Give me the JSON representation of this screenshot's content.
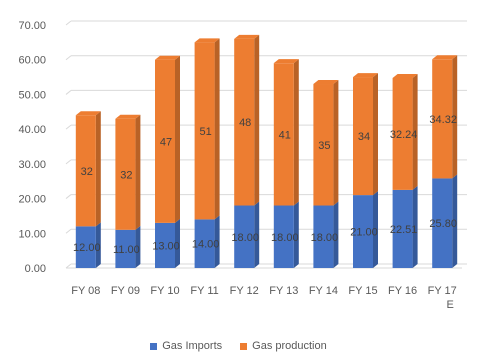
{
  "chart_data": {
    "type": "bar",
    "stacked": true,
    "three_d": true,
    "categories": [
      "FY 08",
      "FY 09",
      "FY 10",
      "FY 11",
      "FY 12",
      "FY 13",
      "FY 14",
      "FY 15",
      "FY 16",
      "FY 17 E"
    ],
    "category_lines": [
      [
        "FY 08"
      ],
      [
        "FY 09"
      ],
      [
        "FY 10"
      ],
      [
        "FY 11"
      ],
      [
        "FY 12"
      ],
      [
        "FY 13"
      ],
      [
        "FY 14"
      ],
      [
        "FY 15"
      ],
      [
        "FY 16"
      ],
      [
        "FY 17",
        "E"
      ]
    ],
    "series": [
      {
        "name": "Gas Imports",
        "color": "#4472C4",
        "values": [
          12.0,
          11.0,
          13.0,
          14.0,
          18.0,
          18.0,
          18.0,
          21.0,
          22.5,
          25.8
        ],
        "labels": [
          "12.00",
          "11.00",
          "13.00",
          "14.00",
          "18.00",
          "18.00",
          "18.00",
          "21.00",
          "22.51",
          "25.80"
        ]
      },
      {
        "name": "Gas production",
        "color": "#ED7D31",
        "values": [
          32,
          32,
          47,
          51,
          48,
          41,
          35,
          34,
          32.24,
          34.32
        ],
        "labels": [
          "32",
          "32",
          "47",
          "51",
          "48",
          "41",
          "35",
          "34",
          "32.24",
          "34.32"
        ]
      }
    ],
    "y_ticks": [
      "0.00",
      "10.00",
      "20.00",
      "30.00",
      "40.00",
      "50.00",
      "60.00",
      "70.00"
    ],
    "ylim": [
      0,
      70
    ],
    "grid": true,
    "legend": "bottom"
  }
}
